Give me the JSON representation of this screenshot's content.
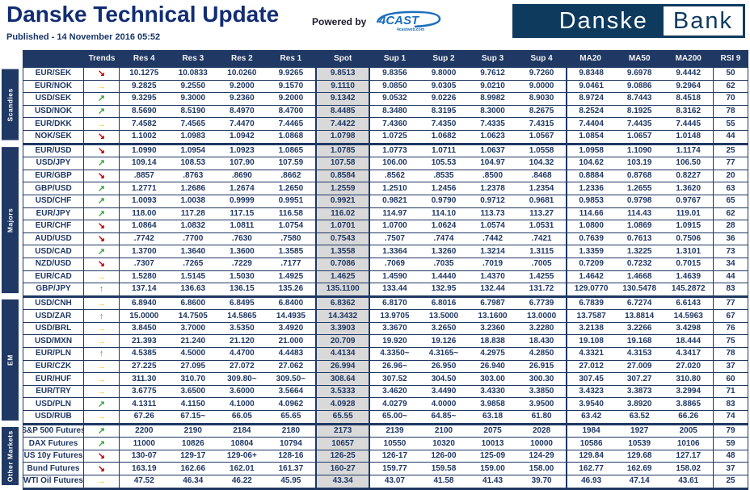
{
  "header": {
    "title": "Danske Technical Update",
    "published": "Published - 14 November 2016 05:52",
    "powered_by_label": "Powered by",
    "powered_logo_text": "4CAST",
    "powered_logo_sub": "4castweb.com",
    "brand_left": "Danske",
    "brand_right": "Bank"
  },
  "colors": {
    "navy": "#1f3864",
    "brand_navy": "#0e3a5e",
    "spot_bg": "#d9d9d9",
    "trend_up": "#3fa33f",
    "trend_flat": "#ffc000",
    "trend_down": "#c00000",
    "fourcast_blue": "#1c6fbc"
  },
  "trend_glyphs": {
    "up": "↑",
    "rise": "↗",
    "flat": "→",
    "fall": "↘"
  },
  "table": {
    "columns": [
      "Trends",
      "Res 4",
      "Res 3",
      "Res 2",
      "Res 1",
      "Spot",
      "Sup 1",
      "Sup 2",
      "Sup 3",
      "Sup 4",
      "MA20",
      "MA50",
      "MA200",
      "RSI 9"
    ],
    "groups": [
      {
        "label": "Scandies",
        "rows": [
          {
            "name": "EUR/SEK",
            "trend": "fall",
            "values": [
              "10.1275",
              "10.0833",
              "10.0260",
              "9.9265",
              "9.8513",
              "9.8356",
              "9.8000",
              "9.7612",
              "9.7260",
              "9.8348",
              "9.6978",
              "9.4442",
              "50"
            ]
          },
          {
            "name": "EUR/NOK",
            "trend": "flat",
            "values": [
              "9.2825",
              "9.2550",
              "9.2000",
              "9.1570",
              "9.1110",
              "9.0850",
              "9.0305",
              "9.0210",
              "9.0000",
              "9.0461",
              "9.0886",
              "9.2964",
              "62"
            ]
          },
          {
            "name": "USD/SEK",
            "trend": "rise",
            "values": [
              "9.3295",
              "9.3000",
              "9.2360",
              "9.2000",
              "9.1342",
              "9.0532",
              "9.0226",
              "8.9982",
              "8.9030",
              "8.9724",
              "8.7443",
              "8.4518",
              "70"
            ]
          },
          {
            "name": "USD/NOK",
            "trend": "rise",
            "values": [
              "8.5690",
              "8.5190",
              "8.4970",
              "8.4700",
              "8.4485",
              "8.3480",
              "8.3195",
              "8.3000",
              "8.2675",
              "8.2524",
              "8.1925",
              "8.3162",
              "78"
            ]
          },
          {
            "name": "EUR/DKK",
            "trend": "flat",
            "values": [
              "7.4582",
              "7.4565",
              "7.4470",
              "7.4465",
              "7.4422",
              "7.4360",
              "7.4350",
              "7.4335",
              "7.4315",
              "7.4404",
              "7.4435",
              "7.4445",
              "55"
            ]
          },
          {
            "name": "NOK/SEK",
            "trend": "fall",
            "values": [
              "1.1002",
              "1.0983",
              "1.0942",
              "1.0868",
              "1.0798",
              "1.0725",
              "1.0682",
              "1.0623",
              "1.0567",
              "1.0854",
              "1.0657",
              "1.0148",
              "44"
            ]
          }
        ]
      },
      {
        "label": "Majors",
        "rows": [
          {
            "name": "EUR/USD",
            "trend": "fall",
            "values": [
              "1.0990",
              "1.0954",
              "1.0923",
              "1.0865",
              "1.0785",
              "1.0773",
              "1.0711",
              "1.0637",
              "1.0558",
              "1.0958",
              "1.1090",
              "1.1174",
              "25"
            ]
          },
          {
            "name": "USD/JPY",
            "trend": "rise",
            "values": [
              "109.14",
              "108.53",
              "107.90",
              "107.59",
              "107.58",
              "106.00",
              "105.53",
              "104.97",
              "104.32",
              "104.62",
              "103.19",
              "106.50",
              "77"
            ]
          },
          {
            "name": "EUR/GBP",
            "trend": "fall",
            "values": [
              ".8857",
              ".8763",
              ".8690",
              ".8662",
              "0.8584",
              ".8562",
              ".8535",
              ".8500",
              ".8468",
              "0.8884",
              "0.8768",
              "0.8227",
              "20"
            ]
          },
          {
            "name": "GBP/USD",
            "trend": "rise",
            "values": [
              "1.2771",
              "1.2686",
              "1.2674",
              "1.2650",
              "1.2559",
              "1.2510",
              "1.2456",
              "1.2378",
              "1.2354",
              "1.2336",
              "1.2655",
              "1.3620",
              "63"
            ]
          },
          {
            "name": "USD/CHF",
            "trend": "rise",
            "values": [
              "1.0093",
              "1.0038",
              "0.9999",
              "0.9951",
              "0.9921",
              "0.9821",
              "0.9790",
              "0.9712",
              "0.9681",
              "0.9853",
              "0.9798",
              "0.9767",
              "65"
            ]
          },
          {
            "name": "EUR/JPY",
            "trend": "rise",
            "values": [
              "118.00",
              "117.28",
              "117.15",
              "116.58",
              "116.02",
              "114.97",
              "114.10",
              "113.73",
              "113.27",
              "114.66",
              "114.43",
              "119.01",
              "62"
            ]
          },
          {
            "name": "EUR/CHF",
            "trend": "fall",
            "values": [
              "1.0864",
              "1.0832",
              "1.0811",
              "1.0754",
              "1.0701",
              "1.0700",
              "1.0624",
              "1.0574",
              "1.0531",
              "1.0800",
              "1.0869",
              "1.0915",
              "28"
            ]
          },
          {
            "name": "AUD/USD",
            "trend": "fall",
            "values": [
              ".7742",
              ".7700",
              ".7630",
              ".7580",
              "0.7543",
              ".7507",
              ".7474",
              ".7442",
              ".7421",
              "0.7639",
              "0.7613",
              "0.7506",
              "36"
            ]
          },
          {
            "name": "USD/CAD",
            "trend": "rise",
            "values": [
              "1.3700",
              "1.3640",
              "1.3600",
              "1.3585",
              "1.3558",
              "1.3364",
              "1.3260",
              "1.3214",
              "1.3115",
              "1.3359",
              "1.3225",
              "1.3101",
              "73"
            ]
          },
          {
            "name": "NZD/USD",
            "trend": "fall",
            "values": [
              ".7307",
              ".7265",
              ".7229",
              ".7177",
              "0.7086",
              ".7069",
              ".7035",
              ".7019",
              ".7005",
              "0.7209",
              "0.7232",
              "0.7015",
              "34"
            ]
          },
          {
            "name": "EUR/CAD",
            "trend": "flat",
            "values": [
              "1.5280",
              "1.5145",
              "1.5030",
              "1.4925",
              "1.4625",
              "1.4590",
              "1.4440",
              "1.4370",
              "1.4255",
              "1.4642",
              "1.4668",
              "1.4639",
              "44"
            ]
          },
          {
            "name": "GBP/JPY",
            "trend": "up",
            "values": [
              "137.14",
              "136.63",
              "136.15",
              "135.26",
              "135.1100",
              "133.44",
              "132.95",
              "132.44",
              "131.72",
              "129.0770",
              "130.5478",
              "145.2872",
              "83"
            ]
          }
        ]
      },
      {
        "label": "EM",
        "rows": [
          {
            "name": "USD/CNH",
            "trend": "flat",
            "values": [
              "6.8940",
              "6.8600",
              "6.8495",
              "6.8400",
              "6.8362",
              "6.8170",
              "6.8016",
              "6.7987",
              "6.7739",
              "6.7839",
              "6.7274",
              "6.6143",
              "77"
            ]
          },
          {
            "name": "USD/ZAR",
            "trend": "up",
            "values": [
              "15.0000",
              "14.7505",
              "14.5865",
              "14.4935",
              "14.3432",
              "13.9705",
              "13.5000",
              "13.1600",
              "13.0000",
              "13.7587",
              "13.8814",
              "14.5963",
              "67"
            ]
          },
          {
            "name": "USD/BRL",
            "trend": "flat",
            "values": [
              "3.8450",
              "3.7000",
              "3.5350",
              "3.4920",
              "3.3903",
              "3.3670",
              "3.2650",
              "3.2360",
              "3.2280",
              "3.2138",
              "3.2266",
              "3.4298",
              "76"
            ]
          },
          {
            "name": "USD/MXN",
            "trend": "flat",
            "values": [
              "21.393",
              "21.240",
              "21.120",
              "21.000",
              "20.709",
              "19.920",
              "19.126",
              "18.838",
              "18.430",
              "19.108",
              "19.168",
              "18.444",
              "75"
            ]
          },
          {
            "name": "EUR/PLN",
            "trend": "up",
            "values": [
              "4.5385",
              "4.5000",
              "4.4700",
              "4.4483",
              "4.4134",
              "4.3350~",
              "4.3165~",
              "4.2975",
              "4.2850",
              "4.3321",
              "4.3153",
              "4.3417",
              "78"
            ]
          },
          {
            "name": "EUR/CZK",
            "trend": "flat",
            "values": [
              "27.225",
              "27.095",
              "27.072",
              "27.062",
              "26.994",
              "26.96~",
              "26.950",
              "26.940",
              "26.915",
              "27.012",
              "27.009",
              "27.020",
              "37"
            ]
          },
          {
            "name": "EUR/HUF",
            "trend": "flat",
            "values": [
              "311.30",
              "310.70",
              "309.80~",
              "309.50~",
              "308.64",
              "307.52",
              "304.50",
              "303.00",
              "300.30",
              "307.45",
              "307.27",
              "310.80",
              "60"
            ]
          },
          {
            "name": "EUR/TRY",
            "trend": "flat",
            "values": [
              "3.6775",
              "3.6500",
              "3.6000",
              "3.5664",
              "3.5333",
              "3.4620",
              "3.4490",
              "3.4330",
              "3.3850",
              "3.4323",
              "3.3873",
              "3.2994",
              "71"
            ]
          },
          {
            "name": "USD/PLN",
            "trend": "rise",
            "values": [
              "4.1311",
              "4.1150",
              "4.1000",
              "4.0962",
              "4.0928",
              "4.0279",
              "4.0000",
              "3.9858",
              "3.9500",
              "3.9540",
              "3.8920",
              "3.8865",
              "83"
            ]
          },
          {
            "name": "USD/RUB",
            "trend": "flat",
            "values": [
              "67.26",
              "67.15~",
              "66.05",
              "65.65",
              "65.55",
              "65.00~",
              "64.85~",
              "63.18",
              "61.80",
              "63.42",
              "63.52",
              "66.26",
              "74"
            ]
          }
        ]
      },
      {
        "label": "Other Markets",
        "rows": [
          {
            "name": "S&P 500 Futures",
            "trend": "rise",
            "values": [
              "2200",
              "2190",
              "2184",
              "2180",
              "2173",
              "2139",
              "2100",
              "2075",
              "2028",
              "1984",
              "1927",
              "2005",
              "79"
            ]
          },
          {
            "name": "DAX Futures",
            "trend": "rise",
            "values": [
              "11000",
              "10826",
              "10804",
              "10794",
              "10657",
              "10550",
              "10320",
              "10013",
              "10000",
              "10586",
              "10539",
              "10106",
              "59"
            ]
          },
          {
            "name": "US 10y Futures",
            "trend": "fall",
            "values": [
              "130-07",
              "129-17",
              "129-06+",
              "128-16",
              "126-25",
              "126-17",
              "126-00",
              "125-09",
              "124-29",
              "129.84",
              "129.68",
              "127.17",
              "48"
            ]
          },
          {
            "name": "Bund Futures",
            "trend": "fall",
            "values": [
              "163.19",
              "162.66",
              "162.01",
              "161.37",
              "160-27",
              "159.77",
              "159.58",
              "159.00",
              "158.00",
              "162.77",
              "162.69",
              "158.02",
              "37"
            ]
          },
          {
            "name": "WTI Oil Futures",
            "trend": "flat",
            "values": [
              "47.52",
              "46.34",
              "46.22",
              "45.95",
              "43.34",
              "43.07",
              "41.58",
              "41.43",
              "39.70",
              "46.93",
              "47.14",
              "43.61",
              "25"
            ]
          }
        ]
      }
    ]
  }
}
